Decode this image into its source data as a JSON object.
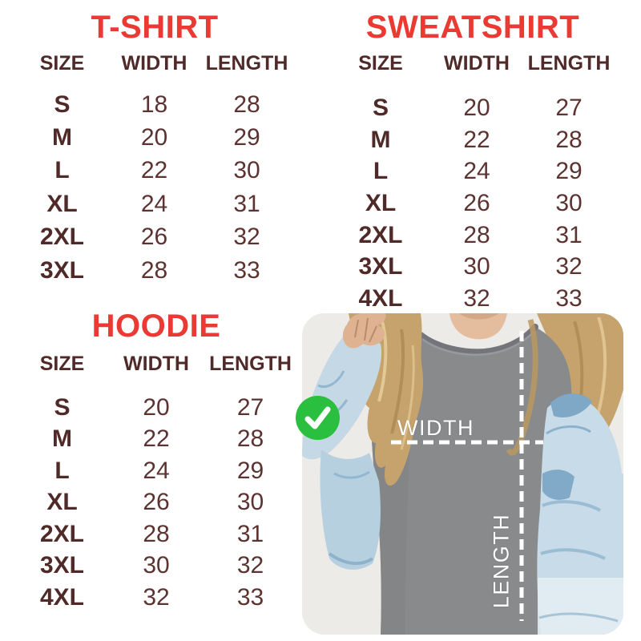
{
  "chart_data": [
    {
      "type": "table",
      "title": "T-SHIRT",
      "columns": [
        "SIZE",
        "WIDTH",
        "LENGTH"
      ],
      "rows": [
        [
          "S",
          "18",
          "28"
        ],
        [
          "M",
          "20",
          "29"
        ],
        [
          "L",
          "22",
          "30"
        ],
        [
          "XL",
          "24",
          "31"
        ],
        [
          "2XL",
          "26",
          "32"
        ],
        [
          "3XL",
          "28",
          "33"
        ]
      ]
    },
    {
      "type": "table",
      "title": "SWEATSHIRT",
      "columns": [
        "SIZE",
        "WIDTH",
        "LENGTH"
      ],
      "rows": [
        [
          "S",
          "20",
          "27"
        ],
        [
          "M",
          "22",
          "28"
        ],
        [
          "L",
          "24",
          "29"
        ],
        [
          "XL",
          "26",
          "30"
        ],
        [
          "2XL",
          "28",
          "31"
        ],
        [
          "3XL",
          "30",
          "32"
        ],
        [
          "4XL",
          "32",
          "33"
        ]
      ]
    },
    {
      "type": "table",
      "title": "HOODIE",
      "columns": [
        "SIZE",
        "WIDTH",
        "LENGTH"
      ],
      "rows": [
        [
          "S",
          "20",
          "27"
        ],
        [
          "M",
          "22",
          "28"
        ],
        [
          "L",
          "24",
          "29"
        ],
        [
          "XL",
          "26",
          "30"
        ],
        [
          "2XL",
          "28",
          "31"
        ],
        [
          "3XL",
          "30",
          "32"
        ],
        [
          "4XL",
          "32",
          "33"
        ]
      ]
    }
  ],
  "photo": {
    "width_label": "WIDTH",
    "length_label": "LENGTH",
    "check_icon": "checkmark-icon"
  },
  "colors": {
    "red": "#ea3a33",
    "brown-dark": "#4f2a28",
    "brown": "#5d3331",
    "green": "#2abf3e",
    "white": "#ffffff",
    "photo-bg": "#edebe8"
  }
}
